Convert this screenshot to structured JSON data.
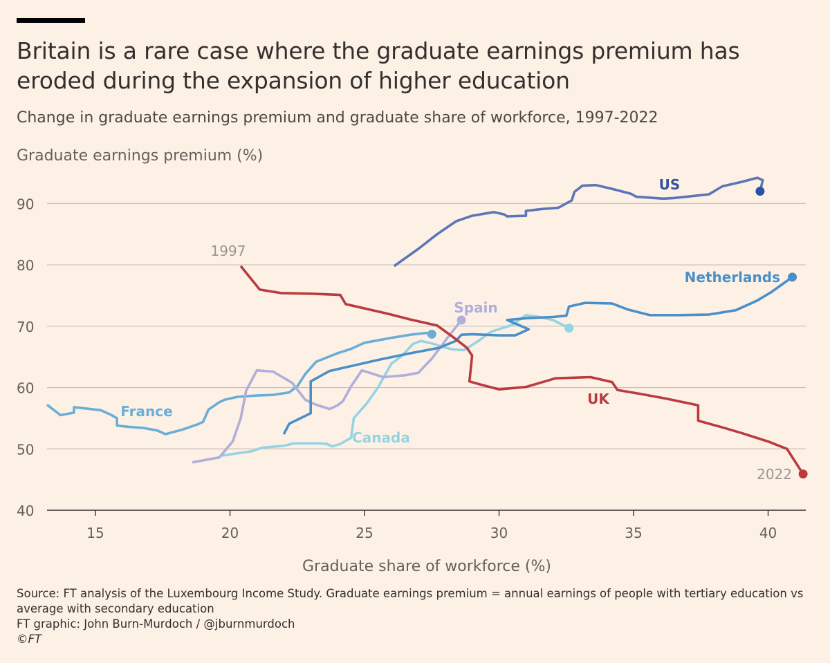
{
  "header": {
    "title": "Britain is a rare case where the graduate earnings premium has eroded during the expansion of higher education",
    "subtitle": "Change in graduate earnings premium and graduate share of workforce, 1997-2022"
  },
  "footer": {
    "source": "Source: FT analysis of the Luxembourg Income Study. Graduate earnings premium = annual earnings of people with tertiary education vs average with secondary education",
    "credit": "FT graphic: John Burn-Murdoch / @jburnmurdoch",
    "copyright": "©FT"
  },
  "chart_data": {
    "type": "line",
    "title": "Britain is a rare case where the graduate earnings premium has eroded during the expansion of higher education",
    "subtitle": "Change in graduate earnings premium and graduate share of workforce, 1997-2022",
    "xlabel": "Graduate share of workforce (%)",
    "ylabel": "Graduate earnings premium (%)",
    "xlim": [
      13.2,
      41.4
    ],
    "ylim": [
      40,
      95
    ],
    "xticks": [
      15,
      20,
      25,
      30,
      35,
      40
    ],
    "yticks": [
      40,
      50,
      60,
      70,
      80,
      90
    ],
    "grid": "horizontal",
    "annotations": [
      {
        "text": "1997",
        "x": 20.4,
        "y": 79.8
      },
      {
        "text": "2022",
        "x": 41.3,
        "y": 45.9
      }
    ],
    "series": [
      {
        "name": "France",
        "color": "#6aaed6",
        "end_marker": true,
        "points": [
          [
            13.2,
            57.2
          ],
          [
            13.7,
            55.5
          ],
          [
            14.2,
            55.9
          ],
          [
            14.2,
            56.8
          ],
          [
            14.6,
            56.6
          ],
          [
            15.2,
            56.3
          ],
          [
            15.6,
            55.5
          ],
          [
            15.8,
            55.0
          ],
          [
            15.8,
            53.8
          ],
          [
            16.2,
            53.6
          ],
          [
            16.8,
            53.4
          ],
          [
            17.3,
            53.0
          ],
          [
            17.6,
            52.4
          ],
          [
            18.2,
            53.1
          ],
          [
            18.8,
            54.0
          ],
          [
            19.0,
            54.4
          ],
          [
            19.2,
            56.4
          ],
          [
            19.6,
            57.6
          ],
          [
            19.8,
            58.0
          ],
          [
            20.3,
            58.5
          ],
          [
            21.0,
            58.7
          ],
          [
            21.6,
            58.8
          ],
          [
            22.2,
            59.2
          ],
          [
            22.5,
            60.2
          ],
          [
            22.8,
            62.2
          ],
          [
            23.2,
            64.2
          ],
          [
            24.0,
            65.6
          ],
          [
            24.5,
            66.3
          ],
          [
            25.0,
            67.3
          ],
          [
            26.0,
            68.1
          ],
          [
            26.7,
            68.6
          ],
          [
            27.3,
            68.9
          ],
          [
            27.5,
            68.7
          ]
        ]
      },
      {
        "name": "Canada",
        "color": "#96d3e3",
        "end_marker": true,
        "points": [
          [
            19.7,
            48.9
          ],
          [
            20.3,
            49.3
          ],
          [
            20.8,
            49.6
          ],
          [
            21.2,
            50.2
          ],
          [
            22.0,
            50.5
          ],
          [
            22.4,
            50.9
          ],
          [
            23.1,
            50.9
          ],
          [
            23.3,
            50.9
          ],
          [
            23.6,
            50.8
          ],
          [
            23.8,
            50.4
          ],
          [
            24.1,
            50.8
          ],
          [
            24.3,
            51.3
          ],
          [
            24.5,
            51.8
          ],
          [
            24.6,
            55.0
          ],
          [
            25.1,
            57.5
          ],
          [
            25.5,
            60.0
          ],
          [
            26.0,
            63.9
          ],
          [
            26.4,
            65.2
          ],
          [
            26.8,
            67.1
          ],
          [
            27.1,
            67.6
          ],
          [
            27.5,
            67.2
          ],
          [
            28.0,
            66.5
          ],
          [
            28.3,
            66.2
          ],
          [
            28.7,
            66.1
          ],
          [
            29.2,
            67.5
          ],
          [
            29.7,
            69.1
          ],
          [
            30.5,
            70.2
          ],
          [
            31.0,
            71.8
          ],
          [
            31.5,
            71.5
          ],
          [
            32.0,
            71.0
          ],
          [
            32.6,
            69.7
          ]
        ]
      },
      {
        "name": "Spain",
        "color": "#b0aedb",
        "end_marker": true,
        "points": [
          [
            18.6,
            47.8
          ],
          [
            19.6,
            48.6
          ],
          [
            20.1,
            51.2
          ],
          [
            20.4,
            55.0
          ],
          [
            20.6,
            59.5
          ],
          [
            21.0,
            62.8
          ],
          [
            21.6,
            62.6
          ],
          [
            22.3,
            60.8
          ],
          [
            22.8,
            58.0
          ],
          [
            23.2,
            57.2
          ],
          [
            23.7,
            56.5
          ],
          [
            24.0,
            57.1
          ],
          [
            24.2,
            57.8
          ],
          [
            24.5,
            60.2
          ],
          [
            24.9,
            62.8
          ],
          [
            25.7,
            61.7
          ],
          [
            26.5,
            62.0
          ],
          [
            27.0,
            62.4
          ],
          [
            27.5,
            64.7
          ],
          [
            28.1,
            68.2
          ],
          [
            28.6,
            71.0
          ]
        ]
      },
      {
        "name": "Netherlands",
        "color": "#4b8fc8",
        "end_marker": true,
        "points": [
          [
            22.0,
            52.4
          ],
          [
            22.2,
            54.1
          ],
          [
            23.0,
            55.8
          ],
          [
            23.0,
            61.0
          ],
          [
            23.7,
            62.7
          ],
          [
            24.4,
            63.4
          ],
          [
            25.5,
            64.5
          ],
          [
            26.6,
            65.5
          ],
          [
            27.8,
            66.5
          ],
          [
            28.0,
            66.9
          ],
          [
            28.4,
            67.6
          ],
          [
            28.6,
            68.6
          ],
          [
            29.0,
            68.7
          ],
          [
            30.0,
            68.5
          ],
          [
            30.6,
            68.5
          ],
          [
            31.1,
            69.5
          ],
          [
            30.3,
            71.0
          ],
          [
            31.0,
            71.3
          ],
          [
            32.0,
            71.5
          ],
          [
            32.5,
            71.7
          ],
          [
            32.6,
            73.2
          ],
          [
            33.2,
            73.8
          ],
          [
            34.2,
            73.7
          ],
          [
            34.8,
            72.7
          ],
          [
            35.6,
            71.8
          ],
          [
            36.7,
            71.8
          ],
          [
            37.8,
            71.9
          ],
          [
            38.8,
            72.6
          ],
          [
            39.6,
            74.2
          ],
          [
            40.1,
            75.5
          ],
          [
            40.9,
            78.0
          ]
        ]
      },
      {
        "name": "US",
        "color": "#5a76b6",
        "label_color": "#3a529c",
        "end_marker": true,
        "end_color": "#2b51a6",
        "points": [
          [
            26.1,
            79.8
          ],
          [
            27.0,
            82.6
          ],
          [
            27.7,
            85.0
          ],
          [
            28.4,
            87.1
          ],
          [
            29.0,
            88.0
          ],
          [
            29.8,
            88.6
          ],
          [
            30.2,
            88.2
          ],
          [
            30.3,
            87.9
          ],
          [
            31.0,
            88.0
          ],
          [
            31.0,
            88.8
          ],
          [
            31.6,
            89.1
          ],
          [
            32.2,
            89.3
          ],
          [
            32.7,
            90.5
          ],
          [
            32.8,
            91.9
          ],
          [
            33.1,
            92.9
          ],
          [
            33.6,
            93.0
          ],
          [
            34.1,
            92.5
          ],
          [
            34.9,
            91.6
          ],
          [
            35.1,
            91.1
          ],
          [
            36.1,
            90.8
          ],
          [
            36.5,
            90.9
          ],
          [
            37.8,
            91.5
          ],
          [
            38.3,
            92.8
          ],
          [
            39.0,
            93.5
          ],
          [
            39.6,
            94.2
          ],
          [
            39.8,
            93.8
          ],
          [
            39.7,
            92.0
          ]
        ]
      },
      {
        "name": "UK",
        "color": "#b93b3f",
        "end_marker": true,
        "points": [
          [
            20.4,
            79.8
          ],
          [
            21.1,
            76.0
          ],
          [
            21.2,
            75.9
          ],
          [
            21.9,
            75.4
          ],
          [
            23.0,
            75.3
          ],
          [
            24.1,
            75.1
          ],
          [
            24.3,
            73.6
          ],
          [
            25.2,
            72.7
          ],
          [
            25.9,
            72.0
          ],
          [
            26.7,
            71.1
          ],
          [
            27.7,
            70.1
          ],
          [
            28.3,
            68.2
          ],
          [
            28.8,
            66.5
          ],
          [
            29.0,
            65.2
          ],
          [
            28.9,
            61.0
          ],
          [
            29.3,
            60.5
          ],
          [
            30.0,
            59.7
          ],
          [
            31.0,
            60.1
          ],
          [
            32.1,
            61.5
          ],
          [
            33.4,
            61.7
          ],
          [
            34.2,
            60.9
          ],
          [
            34.4,
            59.6
          ],
          [
            35.2,
            59.0
          ],
          [
            36.2,
            58.2
          ],
          [
            37.4,
            57.1
          ],
          [
            37.4,
            54.6
          ],
          [
            38.3,
            53.5
          ],
          [
            39.0,
            52.6
          ],
          [
            40.0,
            51.2
          ],
          [
            40.7,
            50.0
          ],
          [
            41.3,
            45.9
          ]
        ]
      }
    ]
  }
}
